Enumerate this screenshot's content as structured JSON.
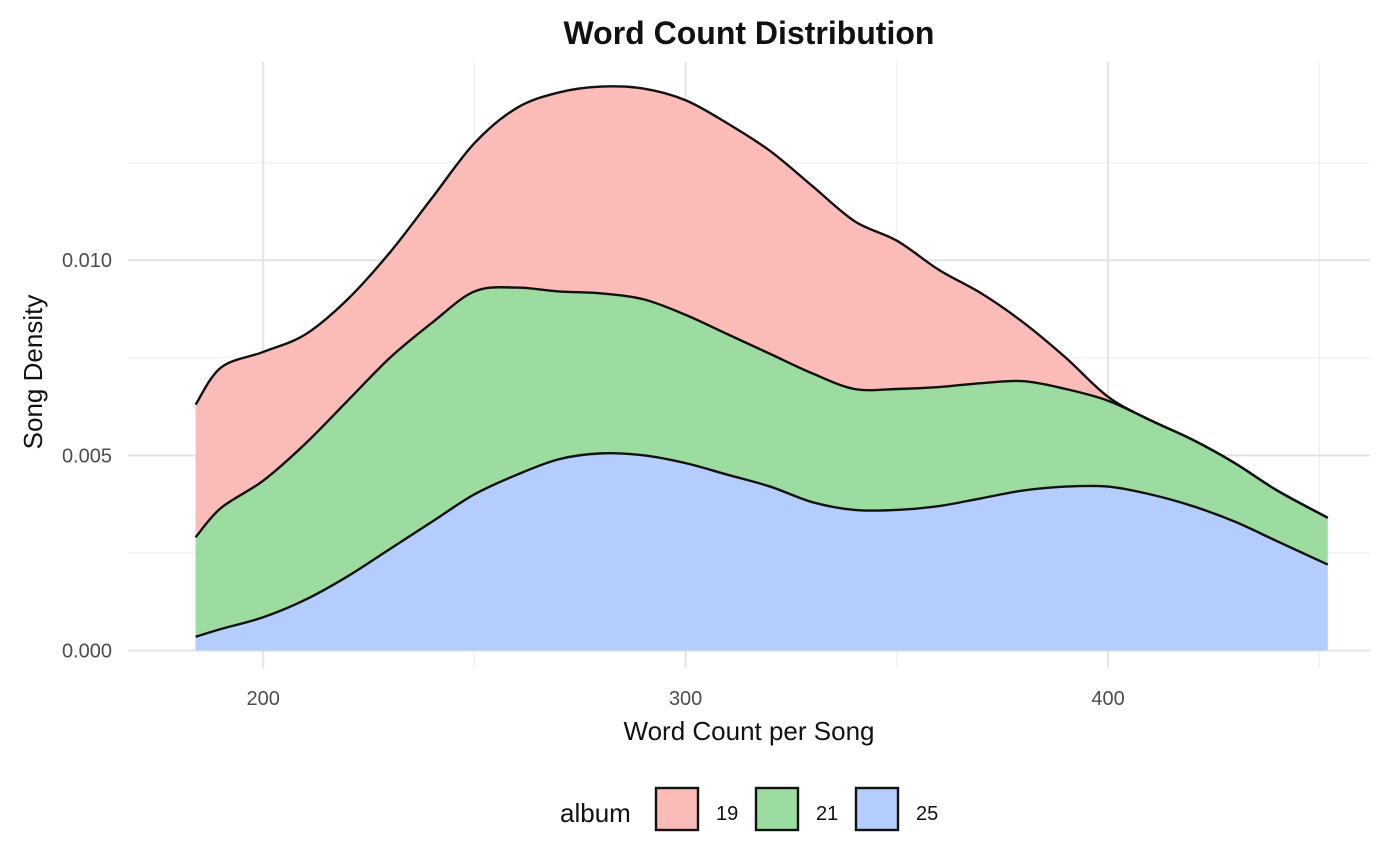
{
  "chart_data": {
    "type": "area",
    "stacked": true,
    "title": "Word Count Distribution",
    "xlabel": "Word Count per Song",
    "ylabel": "Song Density",
    "xlim": [
      168,
      462
    ],
    "ylim": [
      -0.00045,
      0.01508
    ],
    "x_ticks": [
      {
        "value": 200,
        "label": "200"
      },
      {
        "value": 300,
        "label": "300"
      },
      {
        "value": 400,
        "label": "400"
      }
    ],
    "x_minor_ticks": [
      250,
      350,
      450
    ],
    "y_ticks": [
      {
        "value": 0.0,
        "label": "0.000"
      },
      {
        "value": 0.005,
        "label": "0.005"
      },
      {
        "value": 0.01,
        "label": "0.010"
      }
    ],
    "y_minor_ticks": [
      0.0025,
      0.0075,
      0.0125
    ],
    "grid": true,
    "legend": {
      "title": "album",
      "position": "bottom"
    },
    "x": [
      184,
      190,
      200,
      210,
      220,
      230,
      240,
      250,
      260,
      270,
      280,
      290,
      300,
      310,
      320,
      330,
      340,
      350,
      360,
      370,
      380,
      390,
      400,
      410,
      420,
      430,
      440,
      452
    ],
    "series": [
      {
        "name": "25",
        "color": "#b5cdfc",
        "values": [
          0.00035,
          0.00055,
          0.00085,
          0.0013,
          0.0019,
          0.0026,
          0.0033,
          0.004,
          0.0045,
          0.0049,
          0.00505,
          0.005,
          0.0048,
          0.0045,
          0.0042,
          0.0038,
          0.0036,
          0.0036,
          0.0037,
          0.0039,
          0.0041,
          0.0042,
          0.0042,
          0.004,
          0.0037,
          0.0033,
          0.0028,
          0.0022
        ]
      },
      {
        "name": "21",
        "color": "#9cdca0",
        "values": [
          0.00255,
          0.0031,
          0.0035,
          0.004,
          0.0045,
          0.0049,
          0.0051,
          0.0052,
          0.0048,
          0.0043,
          0.0041,
          0.004,
          0.0038,
          0.0036,
          0.0034,
          0.0033,
          0.0031,
          0.0031,
          0.00305,
          0.00295,
          0.0028,
          0.0025,
          0.0022,
          0.0019,
          0.0017,
          0.0015,
          0.0013,
          0.0012
        ]
      },
      {
        "name": "19",
        "color": "#fbbcb9",
        "values": [
          0.0034,
          0.0036,
          0.0033,
          0.0028,
          0.0026,
          0.0027,
          0.0032,
          0.0038,
          0.0046,
          0.0051,
          0.0053,
          0.0054,
          0.0055,
          0.0054,
          0.0052,
          0.0048,
          0.0043,
          0.0038,
          0.003,
          0.0023,
          0.0015,
          0.0008,
          0.0001,
          0.0,
          0.0,
          0.0,
          0.0,
          0.0
        ]
      }
    ],
    "legend_order": [
      "19",
      "21",
      "25"
    ]
  }
}
